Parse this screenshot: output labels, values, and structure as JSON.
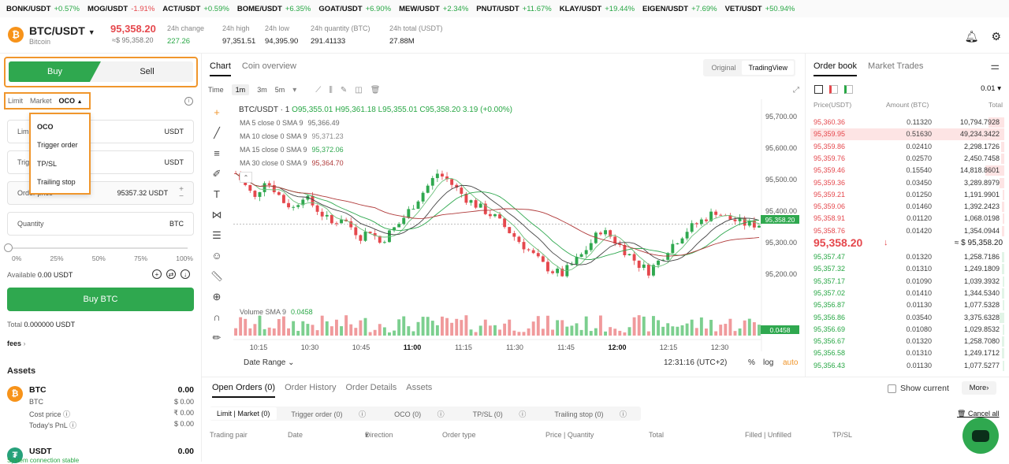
{
  "ticker": [
    {
      "sym": "BONK/USDT",
      "chg": "+0.57%",
      "neg": false
    },
    {
      "sym": "MOG/USDT",
      "chg": "-1.91%",
      "neg": true
    },
    {
      "sym": "ACT/USDT",
      "chg": "+0.59%",
      "neg": false
    },
    {
      "sym": "BOME/USDT",
      "chg": "+6.35%",
      "neg": false
    },
    {
      "sym": "GOAT/USDT",
      "chg": "+6.90%",
      "neg": false
    },
    {
      "sym": "MEW/USDT",
      "chg": "+2.34%",
      "neg": false
    },
    {
      "sym": "PNUT/USDT",
      "chg": "+11.67%",
      "neg": false
    },
    {
      "sym": "KLAY/USDT",
      "chg": "+19.44%",
      "neg": false
    },
    {
      "sym": "EIGEN/USDT",
      "chg": "+7.69%",
      "neg": false
    },
    {
      "sym": "VET/USDT",
      "chg": "+50.94%",
      "neg": false
    }
  ],
  "header": {
    "coin_glyph": "₿",
    "pair": "BTC/USDT",
    "coin_name": "Bitcoin",
    "last_price": "95,358.20",
    "last_usd": "≈$ 95,358.20",
    "stats": [
      {
        "label": "24h change",
        "value": "227.26",
        "green": true
      },
      {
        "label": "24h high",
        "value": "97,351.51",
        "green": false
      },
      {
        "label": "24h low",
        "value": "94,395.90",
        "green": false
      },
      {
        "label": "24h quantity (BTC)",
        "value": "291.41133",
        "green": false
      },
      {
        "label": "24h total (USDT)",
        "value": "27.88M",
        "green": false
      }
    ]
  },
  "trade": {
    "buy_label": "Buy",
    "sell_label": "Sell",
    "order_types": [
      "Limit",
      "Market",
      "OCO"
    ],
    "active_type": "OCO",
    "dropdown": [
      "OCO",
      "Trigger order",
      "TP/SL",
      "Trailing stop"
    ],
    "limit_label": "Limi",
    "limit_unit": "USDT",
    "trigger_label": "Trig",
    "trigger_unit": "USDT",
    "order_price_label": "Order price",
    "order_price_value": "95357.32 USDT",
    "quantity_label": "Quantity",
    "quantity_unit": "BTC",
    "slider_marks": [
      "0%",
      "25%",
      "50%",
      "75%",
      "100%"
    ],
    "slider_value": 0,
    "available_label": "Available",
    "available_value": "0.00 USDT",
    "buy_button": "Buy BTC",
    "total_label": "Total",
    "total_value": "0.000000 USDT",
    "fees_label": "fees"
  },
  "assets": {
    "title": "Assets",
    "btc": {
      "name": "BTC",
      "qty": "0.00",
      "sub": "BTC",
      "sub_val": "$ 0.00",
      "cost_label": "Cost price",
      "cost_val": "₹ 0.00",
      "pnl_label": "Today's PnL",
      "pnl_val": "$ 0.00"
    },
    "usdt": {
      "name": "USDT",
      "qty": "0.00"
    },
    "status": "System connection stable"
  },
  "chart_panel": {
    "tabs": [
      "Chart",
      "Coin overview"
    ],
    "views": [
      "Original",
      "TradingView"
    ],
    "time_label": "Time",
    "intervals": [
      "1m",
      "3m",
      "5m"
    ],
    "legend_pair": "BTC/USDT · 1",
    "ohlc": "O95,355.01 H95,361.18 L95,355.01 C95,358.20 3.19 (+0.00%)",
    "ma": [
      {
        "label": "MA 5 close 0 SMA 9",
        "value": "95,366.49",
        "color": "#6b6b6b"
      },
      {
        "label": "MA 10 close 0 SMA 9",
        "value": "95,371.23",
        "color": "#8a8a8a"
      },
      {
        "label": "MA 15 close 0 SMA 9",
        "value": "95,372.06",
        "color": "#2fa84f"
      },
      {
        "label": "MA 30 close 0 SMA 9",
        "value": "95,364.70",
        "color": "#b03a3a"
      }
    ],
    "volume_label": "Volume SMA 9",
    "volume_value": "0.0458",
    "price_badge": "95,358.20",
    "volume_badge": "0.0458",
    "date_range": "Date Range",
    "clock": "12:31:16 (UTC+2)",
    "pct": "%",
    "log": "log",
    "auto": "auto"
  },
  "chart_data": {
    "type": "candlestick",
    "y_ticks": [
      95700,
      95600,
      95500,
      95400,
      95300,
      95200
    ],
    "ylim": [
      95130,
      95730
    ],
    "x_ticks": [
      "10:15",
      "10:30",
      "10:45",
      "11:00",
      "11:15",
      "11:30",
      "11:45",
      "12:00",
      "12:15",
      "12:30"
    ],
    "bold_ticks": [
      "11:00",
      "12:00"
    ],
    "last_price": 95358.2,
    "close_path": [
      95520,
      95480,
      95440,
      95500,
      95470,
      95430,
      95410,
      95450,
      95420,
      95390,
      95360,
      95380,
      95350,
      95320,
      95340,
      95300,
      95330,
      95360,
      95400,
      95440,
      95480,
      95520,
      95500,
      95470,
      95440,
      95420,
      95400,
      95380,
      95350,
      95320,
      95290,
      95260,
      95230,
      95210,
      95200,
      95230,
      95260,
      95300,
      95340,
      95320,
      95290,
      95260,
      95230,
      95210,
      95240,
      95280,
      95310,
      95340,
      95360,
      95380,
      95400,
      95380,
      95370,
      95360,
      95358
    ]
  },
  "orders": {
    "tabs": [
      "Open Orders (0)",
      "Order History",
      "Order Details",
      "Assets"
    ],
    "show_current": "Show current",
    "more": "More",
    "subtabs": [
      "Limit | Market (0)",
      "Trigger order (0)",
      "OCO (0)",
      "TP/SL (0)",
      "Trailing stop (0)"
    ],
    "cancel_all": "Cancel all",
    "columns": [
      "Trading pair",
      "Date",
      "Direction",
      "Order type",
      "Price | Quantity",
      "Total",
      "Filled | Unfilled",
      "TP/SL"
    ]
  },
  "book": {
    "tabs": [
      "Order book",
      "Market Trades"
    ],
    "precision": "0.01",
    "headers": [
      "Price(USDT)",
      "Amount (BTC)",
      "Total"
    ],
    "asks": [
      {
        "p": "95,360.36",
        "a": "0.11320",
        "t": "10,794.7928",
        "d": 0.28
      },
      {
        "p": "95,359.95",
        "a": "0.51630",
        "t": "49,234.3422",
        "d": 1.0,
        "hl": true
      },
      {
        "p": "95,359.86",
        "a": "0.02410",
        "t": "2,298.1726",
        "d": 0.06
      },
      {
        "p": "95,359.76",
        "a": "0.02570",
        "t": "2,450.7458",
        "d": 0.06
      },
      {
        "p": "95,359.46",
        "a": "0.15540",
        "t": "14,818.8601",
        "d": 0.34
      },
      {
        "p": "95,359.36",
        "a": "0.03450",
        "t": "3,289.8979",
        "d": 0.08
      },
      {
        "p": "95,359.21",
        "a": "0.01250",
        "t": "1,191.9901",
        "d": 0.03
      },
      {
        "p": "95,359.06",
        "a": "0.01460",
        "t": "1,392.2423",
        "d": 0.04
      },
      {
        "p": "95,358.91",
        "a": "0.01120",
        "t": "1,068.0198",
        "d": 0.03
      },
      {
        "p": "95,358.76",
        "a": "0.01420",
        "t": "1,354.0944",
        "d": 0.04
      }
    ],
    "mid_price": "95,358.20",
    "mid_usd": "≈ $ 95,358.20",
    "bids": [
      {
        "p": "95,357.47",
        "a": "0.01320",
        "t": "1,258.7186",
        "d": 0.04
      },
      {
        "p": "95,357.32",
        "a": "0.01310",
        "t": "1,249.1809",
        "d": 0.04
      },
      {
        "p": "95,357.17",
        "a": "0.01090",
        "t": "1,039.3932",
        "d": 0.03
      },
      {
        "p": "95,357.02",
        "a": "0.01410",
        "t": "1,344.5340",
        "d": 0.04
      },
      {
        "p": "95,356.87",
        "a": "0.01130",
        "t": "1,077.5328",
        "d": 0.03
      },
      {
        "p": "95,356.86",
        "a": "0.03540",
        "t": "3,375.6328",
        "d": 0.08
      },
      {
        "p": "95,356.69",
        "a": "0.01080",
        "t": "1,029.8532",
        "d": 0.03
      },
      {
        "p": "95,356.67",
        "a": "0.01320",
        "t": "1,258.7080",
        "d": 0.04
      },
      {
        "p": "95,356.58",
        "a": "0.01310",
        "t": "1,249.1712",
        "d": 0.04
      },
      {
        "p": "95,356.43",
        "a": "0.01130",
        "t": "1,077.5277",
        "d": 0.03
      }
    ]
  }
}
